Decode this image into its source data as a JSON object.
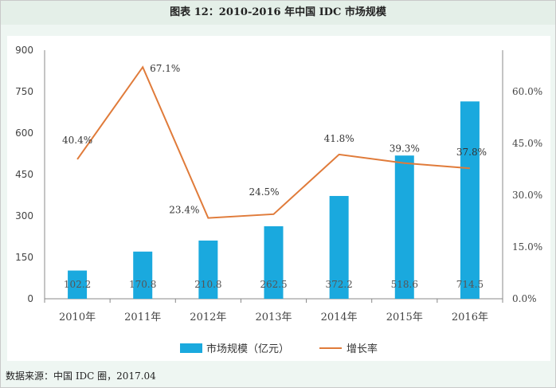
{
  "title": "图表 12：2010-2016 年中国 IDC 市场规模",
  "source": "数据来源：中国 IDC 圈，2017.04",
  "colors": {
    "bar": "#1aa9de",
    "line": "#e07b3a",
    "axis": "#888888",
    "text": "#444444"
  },
  "chart_data": {
    "type": "bar",
    "categories": [
      "2010年",
      "2011年",
      "2012年",
      "2013年",
      "2014年",
      "2015年",
      "2016年"
    ],
    "series": [
      {
        "name": "市场规模（亿元）",
        "type": "bar",
        "axis": "left",
        "values": [
          102.2,
          170.8,
          210.8,
          262.5,
          372.2,
          518.6,
          714.5
        ],
        "labels": [
          "102.2",
          "170.8",
          "210.8",
          "262.5",
          "372.2",
          "518.6",
          "714.5"
        ]
      },
      {
        "name": "增长率",
        "type": "line",
        "axis": "right",
        "values": [
          40.4,
          67.1,
          23.4,
          24.5,
          41.8,
          39.3,
          37.8
        ],
        "labels": [
          "40.4%",
          "67.1%",
          "23.4%",
          "24.5%",
          "41.8%",
          "39.3%",
          "37.8%"
        ]
      }
    ],
    "y_left": {
      "min": 0,
      "max": 900,
      "ticks": [
        "0",
        "150",
        "300",
        "450",
        "600",
        "750",
        "900"
      ]
    },
    "y_right": {
      "min": 0,
      "max": 72,
      "ticks": [
        "0.0%",
        "15.0%",
        "30.0%",
        "45.0%",
        "60.0%"
      ]
    },
    "legend_position": "bottom"
  }
}
